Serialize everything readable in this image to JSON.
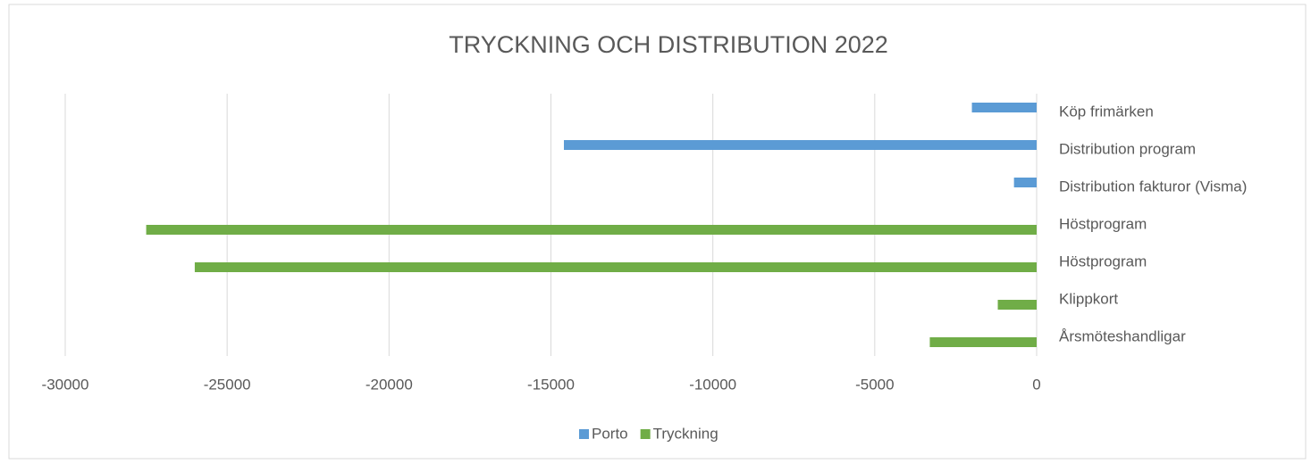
{
  "chart_data": {
    "type": "bar",
    "orientation": "horizontal",
    "title": "TRYCKNING OCH DISTRIBUTION 2022",
    "categories": [
      "Köp frimärken",
      "Distribution program",
      "Distribution fakturor (Visma)",
      "Höstprogram",
      "Höstprogram",
      "Klippkort",
      "Årsmöteshandligar"
    ],
    "series": [
      {
        "name": "Porto",
        "color": "#5b9bd5",
        "values": [
          -2000,
          -14600,
          -700,
          null,
          null,
          null,
          null
        ]
      },
      {
        "name": "Tryckning",
        "color": "#70ad47",
        "values": [
          null,
          null,
          null,
          -27500,
          -26000,
          -1200,
          -3300
        ]
      }
    ],
    "xlim": [
      -30000,
      0
    ],
    "xticks": [
      -30000,
      -25000,
      -20000,
      -15000,
      -10000,
      -5000,
      0
    ],
    "grid": true,
    "legend": "bottom"
  }
}
